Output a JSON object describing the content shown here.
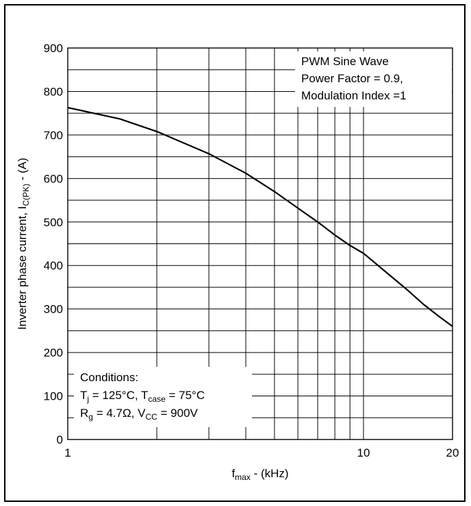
{
  "chart_data": {
    "type": "line",
    "x_scale": "log",
    "xlim": [
      1,
      20
    ],
    "ylim": [
      0,
      900
    ],
    "x_ticks": [
      1,
      10,
      20
    ],
    "x_tick_labels": [
      "1",
      "10",
      "20"
    ],
    "y_ticks": [
      0,
      100,
      200,
      300,
      400,
      500,
      600,
      700,
      800,
      900
    ],
    "y_tick_labels": [
      "0",
      "100",
      "200",
      "300",
      "400",
      "500",
      "600",
      "700",
      "800",
      "900"
    ],
    "grid": true,
    "xlabel": {
      "main": "f",
      "sub": "max",
      "rest": " - (kHz)"
    },
    "ylabel": {
      "main": "Inverter phase current, I",
      "sub": "C(PK)",
      "rest": " - (A)"
    },
    "annotation_top_right": [
      "PWM Sine Wave",
      "Power Factor = 0.9,",
      "Modulation Index =1"
    ],
    "conditions": {
      "title": "Conditions:",
      "line1": {
        "a": "T",
        "a_sub": "j",
        "b": " = 125°C, T",
        "b_sub": "case",
        "c": " = 75°C"
      },
      "line2": {
        "a": "R",
        "a_sub": "g",
        "b": " = 4.7Ω,  V",
        "b_sub": "CC",
        "c": " = 900V"
      }
    },
    "series": [
      {
        "x": [
          1,
          1.5,
          2,
          2.5,
          3,
          4,
          5,
          6,
          7,
          8,
          9,
          10,
          12,
          14,
          16,
          18,
          20
        ],
        "y": [
          763,
          737,
          708,
          680,
          657,
          612,
          570,
          532,
          500,
          470,
          446,
          428,
          383,
          345,
          310,
          283,
          260
        ]
      }
    ]
  }
}
